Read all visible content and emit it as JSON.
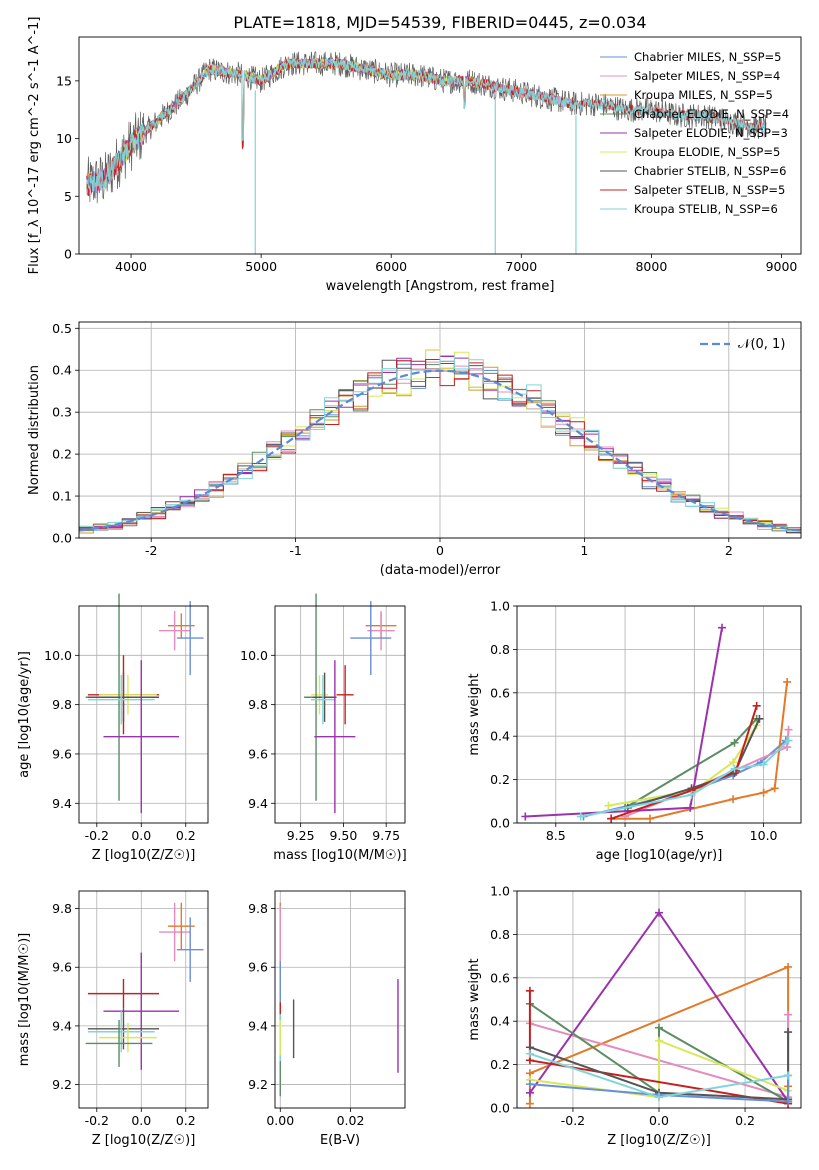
{
  "title": "PLATE=1818, MJD=54539, FIBERID=0445, z=0.034",
  "chart_data": [
    {
      "id": "spectrum",
      "type": "line",
      "xlabel": "wavelength [Angstrom, rest frame]",
      "ylabel": "Flux [f_λ 10^-17 erg cm^-2 s^-1 A^-1]",
      "xlim": [
        3600,
        9150
      ],
      "ylim": [
        0,
        18.8
      ],
      "xticks": [
        4000,
        5000,
        6000,
        7000,
        8000,
        9000
      ],
      "yticks": [
        0,
        5,
        10,
        15
      ],
      "grid": false,
      "legend_position": "right",
      "series": [
        {
          "name": "Chabrier MILES, N_SSP=5",
          "color": "#6a8fd6",
          "x_range": [
            3650,
            7400
          ]
        },
        {
          "name": "Salpeter MILES, N_SSP=4",
          "color": "#e58cbf",
          "x_range": [
            3650,
            7400
          ]
        },
        {
          "name": "Kroupa MILES, N_SSP=5",
          "color": "#d89a2a",
          "x_range": [
            3650,
            7400
          ]
        },
        {
          "name": "Chabrier ELODIE, N_SSP=4",
          "color": "#5b8c63",
          "x_range": [
            3900,
            6800
          ]
        },
        {
          "name": "Salpeter ELODIE, N_SSP=3",
          "color": "#9b32ad",
          "x_range": [
            3900,
            6800
          ]
        },
        {
          "name": "Kroupa ELODIE, N_SSP=5",
          "color": "#d8e85a",
          "x_range": [
            3900,
            6800
          ]
        },
        {
          "name": "Chabrier STELIB, N_SSP=6",
          "color": "#555555",
          "x_range": [
            3650,
            8900
          ]
        },
        {
          "name": "Salpeter STELIB, N_SSP=5",
          "color": "#c42020",
          "x_range": [
            3650,
            8900
          ]
        },
        {
          "name": "Kroupa STELIB, N_SSP=6",
          "color": "#7fd6d9",
          "x_range": [
            3650,
            8900
          ]
        }
      ],
      "data": {
        "x_start": 3660,
        "x_end": 8880,
        "flux_anchor_x": [
          3660,
          3800,
          4000,
          4200,
          4400,
          4600,
          4860,
          5000,
          5200,
          5400,
          5600,
          5800,
          6000,
          6200,
          6400,
          6600,
          6800,
          7000,
          7200,
          7400,
          7600,
          7800,
          8000,
          8200,
          8400,
          8600,
          8800
        ],
        "flux_anchor_y": [
          6.0,
          6.5,
          9.5,
          11.5,
          13.5,
          16.0,
          15.5,
          15.0,
          16.5,
          16.5,
          16.5,
          16.0,
          15.5,
          15.5,
          15.0,
          15.0,
          14.5,
          14.0,
          13.5,
          13.0,
          13.0,
          12.5,
          12.5,
          12.0,
          12.0,
          11.5,
          11.0
        ]
      }
    },
    {
      "id": "residuals",
      "type": "histogram",
      "xlabel": "(data-model)/error",
      "ylabel": "Normed distribution",
      "xlim": [
        -2.5,
        2.5
      ],
      "ylim": [
        0,
        0.515
      ],
      "xticks": [
        -2,
        -1,
        0,
        1,
        2
      ],
      "yticks": [
        0.0,
        0.1,
        0.2,
        0.3,
        0.4,
        0.5
      ],
      "grid": true,
      "legend_position": "top-right",
      "legend": [
        {
          "name": "𝒩(0, 1)",
          "color": "#5b8bd6",
          "style": "dashed"
        }
      ],
      "bin_width": 0.1,
      "bins_from": -2.5,
      "normal_curve": {
        "mean": 0,
        "sigma": 1
      }
    },
    {
      "id": "age-vs-Z",
      "type": "errorbar",
      "xlabel": "Z [log10(Z/Z☉)]",
      "ylabel": "age  [log10(age/yr)]",
      "xlim": [
        -0.28,
        0.3
      ],
      "ylim": [
        9.32,
        10.2
      ],
      "xticks": [
        -0.2,
        0.0,
        0.2
      ],
      "yticks": [
        9.4,
        9.6,
        9.8,
        10.0
      ],
      "grid": true,
      "points": [
        {
          "color": "#e37a2a",
          "x": 0.18,
          "y": 10.12,
          "xerr": 0.06,
          "yerr": 0.05
        },
        {
          "color": "#e58cbf",
          "x": 0.15,
          "y": 10.1,
          "xerr": 0.07,
          "yerr": 0.08
        },
        {
          "color": "#6a8fd6",
          "x": 0.22,
          "y": 10.07,
          "xerr": 0.06,
          "yerr": 0.15
        },
        {
          "color": "#c42020",
          "x": -0.08,
          "y": 9.84,
          "xerr": 0.16,
          "yerr": 0.16
        },
        {
          "color": "#d8e85a",
          "x": -0.06,
          "y": 9.84,
          "xerr": 0.13,
          "yerr": 0.08
        },
        {
          "color": "#5b8c63",
          "x": -0.1,
          "y": 9.83,
          "xerr": 0.15,
          "yerr": 0.42
        },
        {
          "color": "#555555",
          "x": -0.08,
          "y": 9.83,
          "xerr": 0.16,
          "yerr": 0.1
        },
        {
          "color": "#7fd6d9",
          "x": -0.09,
          "y": 9.82,
          "xerr": 0.15,
          "yerr": 0.1
        },
        {
          "color": "#9b32ad",
          "x": 0.0,
          "y": 9.67,
          "xerr": 0.17,
          "yerr": 0.31
        }
      ]
    },
    {
      "id": "age-vs-mass",
      "type": "errorbar",
      "xlabel": "mass [log10(M/M☉)]",
      "xlim": [
        9.1,
        9.86
      ],
      "ylim": [
        9.32,
        10.2
      ],
      "xticks": [
        9.25,
        9.5,
        9.75
      ],
      "yticks": [
        9.4,
        9.6,
        9.8,
        10.0
      ],
      "grid": true,
      "points": [
        {
          "color": "#e37a2a",
          "x": 9.72,
          "y": 10.12,
          "xerr": 0.09,
          "yerr": 0.05
        },
        {
          "color": "#e58cbf",
          "x": 9.72,
          "y": 10.1,
          "xerr": 0.08,
          "yerr": 0.08
        },
        {
          "color": "#6a8fd6",
          "x": 9.66,
          "y": 10.07,
          "xerr": 0.12,
          "yerr": 0.15
        },
        {
          "color": "#c42020",
          "x": 9.51,
          "y": 9.84,
          "xerr": 0.05,
          "yerr": 0.12
        },
        {
          "color": "#d8e85a",
          "x": 9.36,
          "y": 9.84,
          "xerr": 0.05,
          "yerr": 0.08
        },
        {
          "color": "#5b8c63",
          "x": 9.34,
          "y": 9.83,
          "xerr": 0.07,
          "yerr": 0.42
        },
        {
          "color": "#555555",
          "x": 9.39,
          "y": 9.83,
          "xerr": 0.07,
          "yerr": 0.1
        },
        {
          "color": "#7fd6d9",
          "x": 9.38,
          "y": 9.82,
          "xerr": 0.07,
          "yerr": 0.1
        },
        {
          "color": "#9b32ad",
          "x": 9.45,
          "y": 9.67,
          "xerr": 0.12,
          "yerr": 0.31
        }
      ]
    },
    {
      "id": "mass-weight-vs-age",
      "type": "line",
      "xlabel": "age  [log10(age/yr)]",
      "ylabel": "mass weight",
      "xlim": [
        8.22,
        10.27
      ],
      "ylim": [
        0,
        1.0
      ],
      "xticks": [
        8.5,
        9.0,
        9.5,
        10.0
      ],
      "yticks": [
        0.0,
        0.2,
        0.4,
        0.6,
        0.8,
        1.0
      ],
      "grid": true,
      "series": [
        {
          "color": "#6a8fd6",
          "x": [
            8.7,
            9.48,
            9.78,
            9.98,
            10.16
          ],
          "y": [
            0.03,
            0.15,
            0.22,
            0.28,
            0.38
          ]
        },
        {
          "color": "#e58cbf",
          "x": [
            9.0,
            9.5,
            10.17,
            10.18
          ],
          "y": [
            0.03,
            0.16,
            0.35,
            0.43
          ]
        },
        {
          "color": "#e37a2a",
          "x": [
            8.9,
            9.18,
            9.78,
            10.0,
            10.08,
            10.17
          ],
          "y": [
            0.02,
            0.02,
            0.11,
            0.14,
            0.16,
            0.65
          ]
        },
        {
          "color": "#5b8c63",
          "x": [
            9.0,
            9.79,
            9.95
          ],
          "y": [
            0.07,
            0.37,
            0.48
          ]
        },
        {
          "color": "#9b32ad",
          "x": [
            8.28,
            9.47,
            9.7
          ],
          "y": [
            0.03,
            0.07,
            0.9
          ]
        },
        {
          "color": "#d8e85a",
          "x": [
            8.88,
            9.5,
            9.78,
            9.95
          ],
          "y": [
            0.08,
            0.15,
            0.28,
            0.45
          ]
        },
        {
          "color": "#555555",
          "x": [
            9.02,
            9.48,
            9.79,
            9.97
          ],
          "y": [
            0.07,
            0.16,
            0.23,
            0.48
          ]
        },
        {
          "color": "#c42020",
          "x": [
            8.9,
            9.48,
            9.8,
            9.95
          ],
          "y": [
            0.02,
            0.15,
            0.24,
            0.54
          ]
        },
        {
          "color": "#7fd6d9",
          "x": [
            8.68,
            9.48,
            9.79,
            10.0,
            10.18
          ],
          "y": [
            0.03,
            0.13,
            0.25,
            0.27,
            0.38
          ]
        }
      ]
    },
    {
      "id": "mass-vs-Z",
      "type": "errorbar",
      "xlabel": "Z [log10(Z/Z☉)]",
      "ylabel": "mass [log10(M/M☉)]",
      "xlim": [
        -0.28,
        0.3
      ],
      "ylim": [
        9.12,
        9.86
      ],
      "xticks": [
        -0.2,
        0.0,
        0.2
      ],
      "yticks": [
        9.2,
        9.4,
        9.6,
        9.8
      ],
      "grid": true,
      "points": [
        {
          "color": "#e58cbf",
          "x": 0.15,
          "y": 9.72,
          "xerr": 0.07,
          "yerr": 0.1
        },
        {
          "color": "#e37a2a",
          "x": 0.18,
          "y": 9.74,
          "xerr": 0.06,
          "yerr": 0.08
        },
        {
          "color": "#6a8fd6",
          "x": 0.22,
          "y": 9.66,
          "xerr": 0.06,
          "yerr": 0.11
        },
        {
          "color": "#c42020",
          "x": -0.08,
          "y": 9.51,
          "xerr": 0.16,
          "yerr": 0.05
        },
        {
          "color": "#9b32ad",
          "x": 0.0,
          "y": 9.45,
          "xerr": 0.17,
          "yerr": 0.2
        },
        {
          "color": "#555555",
          "x": -0.08,
          "y": 9.39,
          "xerr": 0.16,
          "yerr": 0.07
        },
        {
          "color": "#7fd6d9",
          "x": -0.09,
          "y": 9.38,
          "xerr": 0.15,
          "yerr": 0.07
        },
        {
          "color": "#d8e85a",
          "x": -0.06,
          "y": 9.36,
          "xerr": 0.13,
          "yerr": 0.05
        },
        {
          "color": "#5b8c63",
          "x": -0.1,
          "y": 9.34,
          "xerr": 0.15,
          "yerr": 0.08
        }
      ]
    },
    {
      "id": "mass-vs-EBV",
      "type": "errorbar",
      "xlabel": "E(B-V)",
      "xlim": [
        -0.0015,
        0.0355
      ],
      "ylim": [
        9.12,
        9.86
      ],
      "xticks": [
        0.0,
        0.02
      ],
      "yticks": [
        9.2,
        9.4,
        9.6,
        9.8
      ],
      "grid": true,
      "points": [
        {
          "color": "#e37a2a",
          "x": 0.0,
          "y": 9.6,
          "xerr": 0,
          "yerr": 0.22
        },
        {
          "color": "#e58cbf",
          "x": 0.0,
          "y": 9.65,
          "xerr": 0,
          "yerr": 0.16
        },
        {
          "color": "#6a8fd6",
          "x": 0.0,
          "y": 9.5,
          "xerr": 0,
          "yerr": 0.12
        },
        {
          "color": "#5b8c63",
          "x": 0.0,
          "y": 9.32,
          "xerr": 0,
          "yerr": 0.16
        },
        {
          "color": "#c42020",
          "x": 0.0,
          "y": 9.42,
          "xerr": 0,
          "yerr": 0.06
        },
        {
          "color": "#7fd6d9",
          "x": 0.0,
          "y": 9.36,
          "xerr": 0,
          "yerr": 0.08
        },
        {
          "color": "#d8e85a",
          "x": 0.0,
          "y": 9.36,
          "xerr": 0,
          "yerr": 0.06
        },
        {
          "color": "#555555",
          "x": 0.0038,
          "y": 9.39,
          "xerr": 0,
          "yerr": 0.1
        },
        {
          "color": "#9b32ad",
          "x": 0.0335,
          "y": 9.4,
          "xerr": 0,
          "yerr": 0.16
        }
      ]
    },
    {
      "id": "mass-weight-vs-Z",
      "type": "line",
      "xlabel": "Z [log10(Z/Z☉)]",
      "ylabel": "mass weight",
      "xlim": [
        -0.33,
        0.33
      ],
      "ylim": [
        0,
        1.0
      ],
      "xticks": [
        -0.2,
        0.0,
        0.2
      ],
      "yticks": [
        0.0,
        0.2,
        0.4,
        0.6,
        0.8,
        1.0
      ],
      "grid": true,
      "series": [
        {
          "color": "#e37a2a",
          "x": [
            -0.3,
            -0.3,
            0.3,
            0.3
          ],
          "y": [
            0.02,
            0.16,
            0.65,
            0.1
          ]
        },
        {
          "color": "#e58cbf",
          "x": [
            -0.3,
            0.3,
            0.3
          ],
          "y": [
            0.39,
            0.05,
            0.43
          ]
        },
        {
          "color": "#9b32ad",
          "x": [
            -0.3,
            0.0,
            0.3
          ],
          "y": [
            0.07,
            0.9,
            0.03
          ]
        },
        {
          "color": "#5b8c63",
          "x": [
            -0.3,
            0.0,
            0.0,
            0.3
          ],
          "y": [
            0.48,
            0.07,
            0.37,
            0.03
          ]
        },
        {
          "color": "#d8e85a",
          "x": [
            -0.3,
            0.0,
            0.0,
            0.3
          ],
          "y": [
            0.13,
            0.05,
            0.31,
            0.08
          ]
        },
        {
          "color": "#c42020",
          "x": [
            -0.3,
            -0.3,
            0.3
          ],
          "y": [
            0.54,
            0.22,
            0.02
          ]
        },
        {
          "color": "#555555",
          "x": [
            -0.3,
            0.0,
            0.3,
            0.3
          ],
          "y": [
            0.28,
            0.07,
            0.04,
            0.35
          ]
        },
        {
          "color": "#6a8fd6",
          "x": [
            -0.3,
            0.0,
            0.3,
            0.3
          ],
          "y": [
            0.11,
            0.06,
            0.03,
            0.15
          ]
        },
        {
          "color": "#7fd6d9",
          "x": [
            -0.3,
            0.0,
            0.3
          ],
          "y": [
            0.25,
            0.05,
            0.15
          ]
        }
      ]
    }
  ]
}
